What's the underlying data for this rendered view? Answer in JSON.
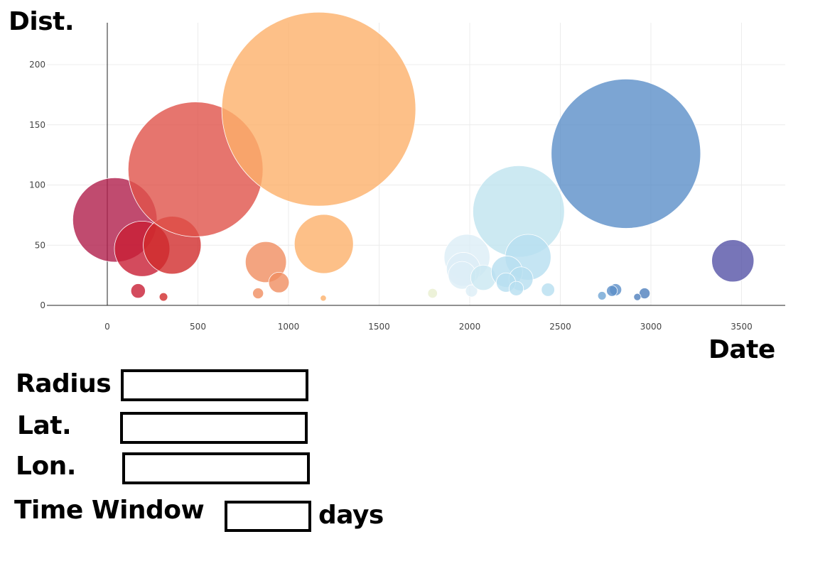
{
  "axis_titles": {
    "y": "Dist.",
    "x": "Date"
  },
  "form": {
    "radius": {
      "label": "Radius",
      "value": ""
    },
    "lat": {
      "label": "Lat.",
      "value": ""
    },
    "lon": {
      "label": "Lon.",
      "value": ""
    },
    "time_window": {
      "label": "Time Window",
      "value": "",
      "unit": "days"
    }
  },
  "chart_data": {
    "type": "scatter",
    "title": "",
    "xlabel": "Date",
    "ylabel": "Dist.",
    "xlim": [
      -350,
      3750
    ],
    "ylim": [
      -3,
      225
    ],
    "xticks": [
      0,
      500,
      1000,
      1500,
      2000,
      2500,
      3000,
      3500
    ],
    "yticks": [
      0,
      50,
      100,
      150,
      200
    ],
    "grid": true,
    "legend": "none",
    "colors": {
      "dark_red": "#b01e4b",
      "red": "#d93b3b",
      "salmon": "#e0534a",
      "orange": "#f08d60",
      "peach": "#fdb06a",
      "pale_yellow": "#e9efcf",
      "pale_blue": "#bfe3ef",
      "light_blue": "#b6dff0",
      "mid_blue": "#6fa5d4",
      "blue": "#5b8fc8",
      "purple": "#5553a6"
    },
    "points": [
      {
        "x": 42,
        "y": 71,
        "size": 70,
        "color": "#b01e4b"
      },
      {
        "x": 192,
        "y": 47,
        "size": 46,
        "color": "#c81e34"
      },
      {
        "x": 358,
        "y": 50,
        "size": 48,
        "color": "#d12c2c"
      },
      {
        "x": 487,
        "y": 113,
        "size": 112,
        "color": "#e0534a"
      },
      {
        "x": 170,
        "y": 12,
        "size": 12,
        "color": "#c81e34"
      },
      {
        "x": 310,
        "y": 7,
        "size": 7,
        "color": "#d12c2c"
      },
      {
        "x": 875,
        "y": 36,
        "size": 34,
        "color": "#f08d60"
      },
      {
        "x": 947,
        "y": 19,
        "size": 17,
        "color": "#f08d60"
      },
      {
        "x": 832,
        "y": 10,
        "size": 9,
        "color": "#f08d60"
      },
      {
        "x": 1167,
        "y": 163,
        "size": 161,
        "color": "#fdb06a"
      },
      {
        "x": 1195,
        "y": 51,
        "size": 49,
        "color": "#fdb06a"
      },
      {
        "x": 1192,
        "y": 6,
        "size": 5,
        "color": "#fdb06a"
      },
      {
        "x": 1795,
        "y": 10,
        "size": 8,
        "color": "#e9efcf"
      },
      {
        "x": 1985,
        "y": 40,
        "size": 38,
        "color": "#dcedf6"
      },
      {
        "x": 1965,
        "y": 30,
        "size": 28,
        "color": "#dcedf6"
      },
      {
        "x": 1958,
        "y": 25,
        "size": 23,
        "color": "#dcedf6"
      },
      {
        "x": 2010,
        "y": 12,
        "size": 10,
        "color": "#dcedf6"
      },
      {
        "x": 2075,
        "y": 23,
        "size": 21,
        "color": "#c9e7f1"
      },
      {
        "x": 2270,
        "y": 78,
        "size": 76,
        "color": "#bfe3ef"
      },
      {
        "x": 2322,
        "y": 40,
        "size": 38,
        "color": "#b6dff0"
      },
      {
        "x": 2205,
        "y": 28,
        "size": 26,
        "color": "#b6dff0"
      },
      {
        "x": 2283,
        "y": 22,
        "size": 20,
        "color": "#b6dff0"
      },
      {
        "x": 2200,
        "y": 19,
        "size": 16,
        "color": "#b6dff0"
      },
      {
        "x": 2257,
        "y": 14,
        "size": 12,
        "color": "#b6dff0"
      },
      {
        "x": 2432,
        "y": 13,
        "size": 11,
        "color": "#b6dff0"
      },
      {
        "x": 2862,
        "y": 126,
        "size": 124,
        "color": "#5b8fc8"
      },
      {
        "x": 2805,
        "y": 13,
        "size": 10,
        "color": "#5b8fc8"
      },
      {
        "x": 2785,
        "y": 12,
        "size": 9,
        "color": "#5b8fc8"
      },
      {
        "x": 2730,
        "y": 8,
        "size": 7,
        "color": "#6fa5d4"
      },
      {
        "x": 2965,
        "y": 10,
        "size": 9,
        "color": "#4f7fbd"
      },
      {
        "x": 2925,
        "y": 7,
        "size": 6,
        "color": "#4f7fbd"
      },
      {
        "x": 3452,
        "y": 37,
        "size": 35,
        "color": "#5553a6"
      }
    ]
  }
}
